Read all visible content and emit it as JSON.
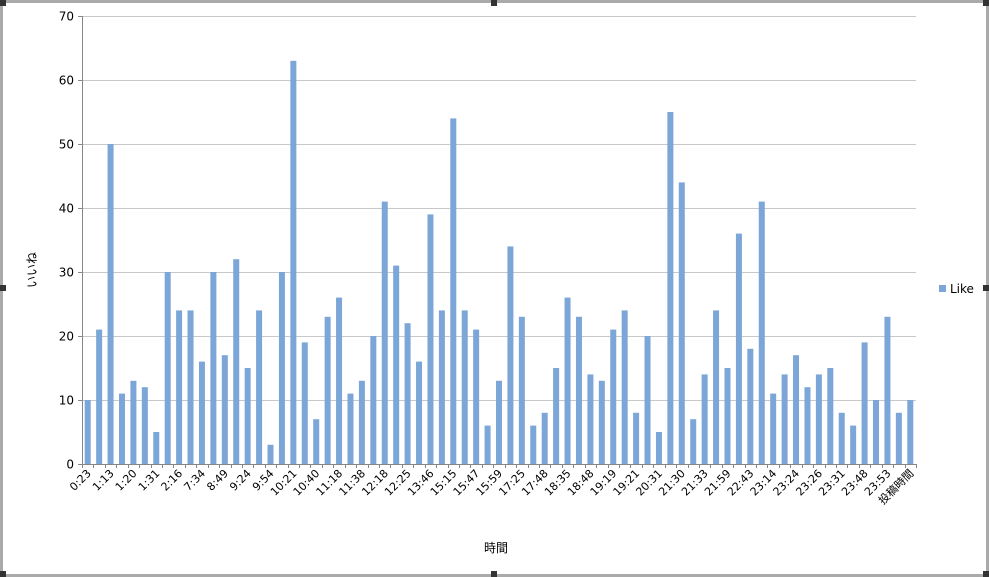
{
  "chart_data": {
    "type": "bar",
    "title": "",
    "xlabel": "時間",
    "ylabel": "いいね",
    "ylim": [
      0,
      70
    ],
    "yticks": [
      0,
      10,
      20,
      30,
      40,
      50,
      60,
      70
    ],
    "grid": true,
    "legend_position": "right",
    "series": [
      {
        "name": "Like",
        "color": "#7ba6d7",
        "values": [
          10,
          21,
          50,
          11,
          13,
          12,
          5,
          30,
          24,
          24,
          16,
          30,
          17,
          32,
          15,
          24,
          3,
          30,
          63,
          19,
          7,
          23,
          26,
          11,
          13,
          20,
          41,
          31,
          22,
          16,
          39,
          24,
          54,
          24,
          21,
          6,
          13,
          34,
          23,
          6,
          8,
          15,
          26,
          23,
          14,
          13,
          21,
          24,
          8,
          20,
          5,
          55,
          44,
          7,
          14,
          24,
          15,
          36,
          18,
          41,
          11,
          14,
          17,
          12,
          14,
          15,
          8,
          6,
          19,
          10,
          23,
          8,
          10
        ]
      }
    ],
    "x_tick_labels": [
      {
        "index": 0,
        "label": "0:23"
      },
      {
        "index": 2,
        "label": "1:13"
      },
      {
        "index": 4,
        "label": "1:20"
      },
      {
        "index": 6,
        "label": "1:31"
      },
      {
        "index": 8,
        "label": "2:16"
      },
      {
        "index": 10,
        "label": "7:34"
      },
      {
        "index": 12,
        "label": "8:49"
      },
      {
        "index": 14,
        "label": "9:24"
      },
      {
        "index": 16,
        "label": "9:54"
      },
      {
        "index": 18,
        "label": "10:21"
      },
      {
        "index": 20,
        "label": "10:40"
      },
      {
        "index": 22,
        "label": "11:18"
      },
      {
        "index": 24,
        "label": "11:38"
      },
      {
        "index": 26,
        "label": "12:18"
      },
      {
        "index": 28,
        "label": "12:25"
      },
      {
        "index": 30,
        "label": "13:46"
      },
      {
        "index": 32,
        "label": "15:15"
      },
      {
        "index": 34,
        "label": "15:47"
      },
      {
        "index": 36,
        "label": "15:59"
      },
      {
        "index": 38,
        "label": "17:25"
      },
      {
        "index": 40,
        "label": "17:48"
      },
      {
        "index": 42,
        "label": "18:35"
      },
      {
        "index": 44,
        "label": "18:48"
      },
      {
        "index": 46,
        "label": "19:19"
      },
      {
        "index": 48,
        "label": "19:21"
      },
      {
        "index": 50,
        "label": "20:31"
      },
      {
        "index": 52,
        "label": "21:30"
      },
      {
        "index": 54,
        "label": "21:33"
      },
      {
        "index": 56,
        "label": "21:59"
      },
      {
        "index": 58,
        "label": "22:43"
      },
      {
        "index": 60,
        "label": "23:14"
      },
      {
        "index": 62,
        "label": "23:24"
      },
      {
        "index": 64,
        "label": "23:26"
      },
      {
        "index": 66,
        "label": "23:31"
      },
      {
        "index": 68,
        "label": "23:48"
      },
      {
        "index": 70,
        "label": "23:53"
      },
      {
        "index": 72,
        "label": "投稿時間"
      }
    ]
  }
}
